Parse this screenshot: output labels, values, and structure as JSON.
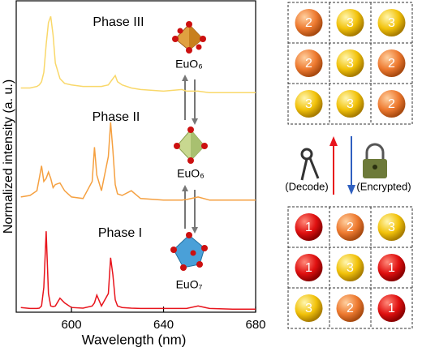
{
  "chart_data": {
    "type": "line",
    "xlabel": "Wavelength (nm)",
    "ylabel": "Normalized intensity (a. u.)",
    "x": [
      578,
      582,
      585,
      586,
      587,
      588,
      589,
      590,
      591,
      592,
      593,
      595,
      597,
      600,
      605,
      609,
      610,
      611,
      613,
      616,
      617,
      618,
      619,
      620,
      622,
      626,
      630,
      640,
      648,
      650,
      655,
      660,
      670,
      680
    ],
    "xlim": [
      576,
      680
    ],
    "xticks": [
      600,
      640,
      680
    ],
    "ylim": [
      0,
      10
    ],
    "series": [
      {
        "name": "Phase I",
        "color": "#e8141c",
        "values": [
          0.15,
          0.12,
          0.12,
          0.13,
          0.2,
          0.8,
          2.6,
          0.6,
          0.2,
          0.18,
          0.2,
          0.45,
          0.3,
          0.15,
          0.13,
          0.2,
          0.3,
          0.55,
          0.2,
          0.6,
          1.75,
          1.2,
          0.4,
          0.2,
          0.15,
          0.13,
          0.12,
          0.12,
          0.12,
          0.12,
          0.2,
          0.12,
          0.1,
          0.1
        ]
      },
      {
        "name": "Phase II",
        "color": "#f5a040",
        "values": [
          3.7,
          3.75,
          3.9,
          4.3,
          4.7,
          4.2,
          4.3,
          4.5,
          4.3,
          4.0,
          4.1,
          4.15,
          3.9,
          3.7,
          3.65,
          4.2,
          5.3,
          4.4,
          3.9,
          5.0,
          6.1,
          5.2,
          4.1,
          3.8,
          3.75,
          3.9,
          3.65,
          3.6,
          3.6,
          3.62,
          3.7,
          3.6,
          3.6,
          3.6
        ]
      },
      {
        "name": "Phase III",
        "color": "#f9d86a",
        "values": [
          7.2,
          7.2,
          7.25,
          7.3,
          7.4,
          7.7,
          8.6,
          9.3,
          9.5,
          8.9,
          8.0,
          7.5,
          7.35,
          7.3,
          7.25,
          7.25,
          7.25,
          7.25,
          7.25,
          7.3,
          7.4,
          7.5,
          7.6,
          7.4,
          7.3,
          7.2,
          7.15,
          7.1,
          7.15,
          7.1,
          7.1,
          7.05,
          7.05,
          7.05
        ]
      }
    ],
    "annotations": [
      "EuO₇",
      "EuO₆",
      "EuO₆"
    ]
  },
  "grids": {
    "top": [
      [
        2,
        3,
        3
      ],
      [
        2,
        3,
        2
      ],
      [
        3,
        3,
        2
      ]
    ],
    "bottom": [
      [
        1,
        2,
        3
      ],
      [
        1,
        3,
        1
      ],
      [
        3,
        2,
        1
      ]
    ]
  },
  "keys": {
    "decode": "(Decode)",
    "encrypted": "(Encrypted)"
  }
}
